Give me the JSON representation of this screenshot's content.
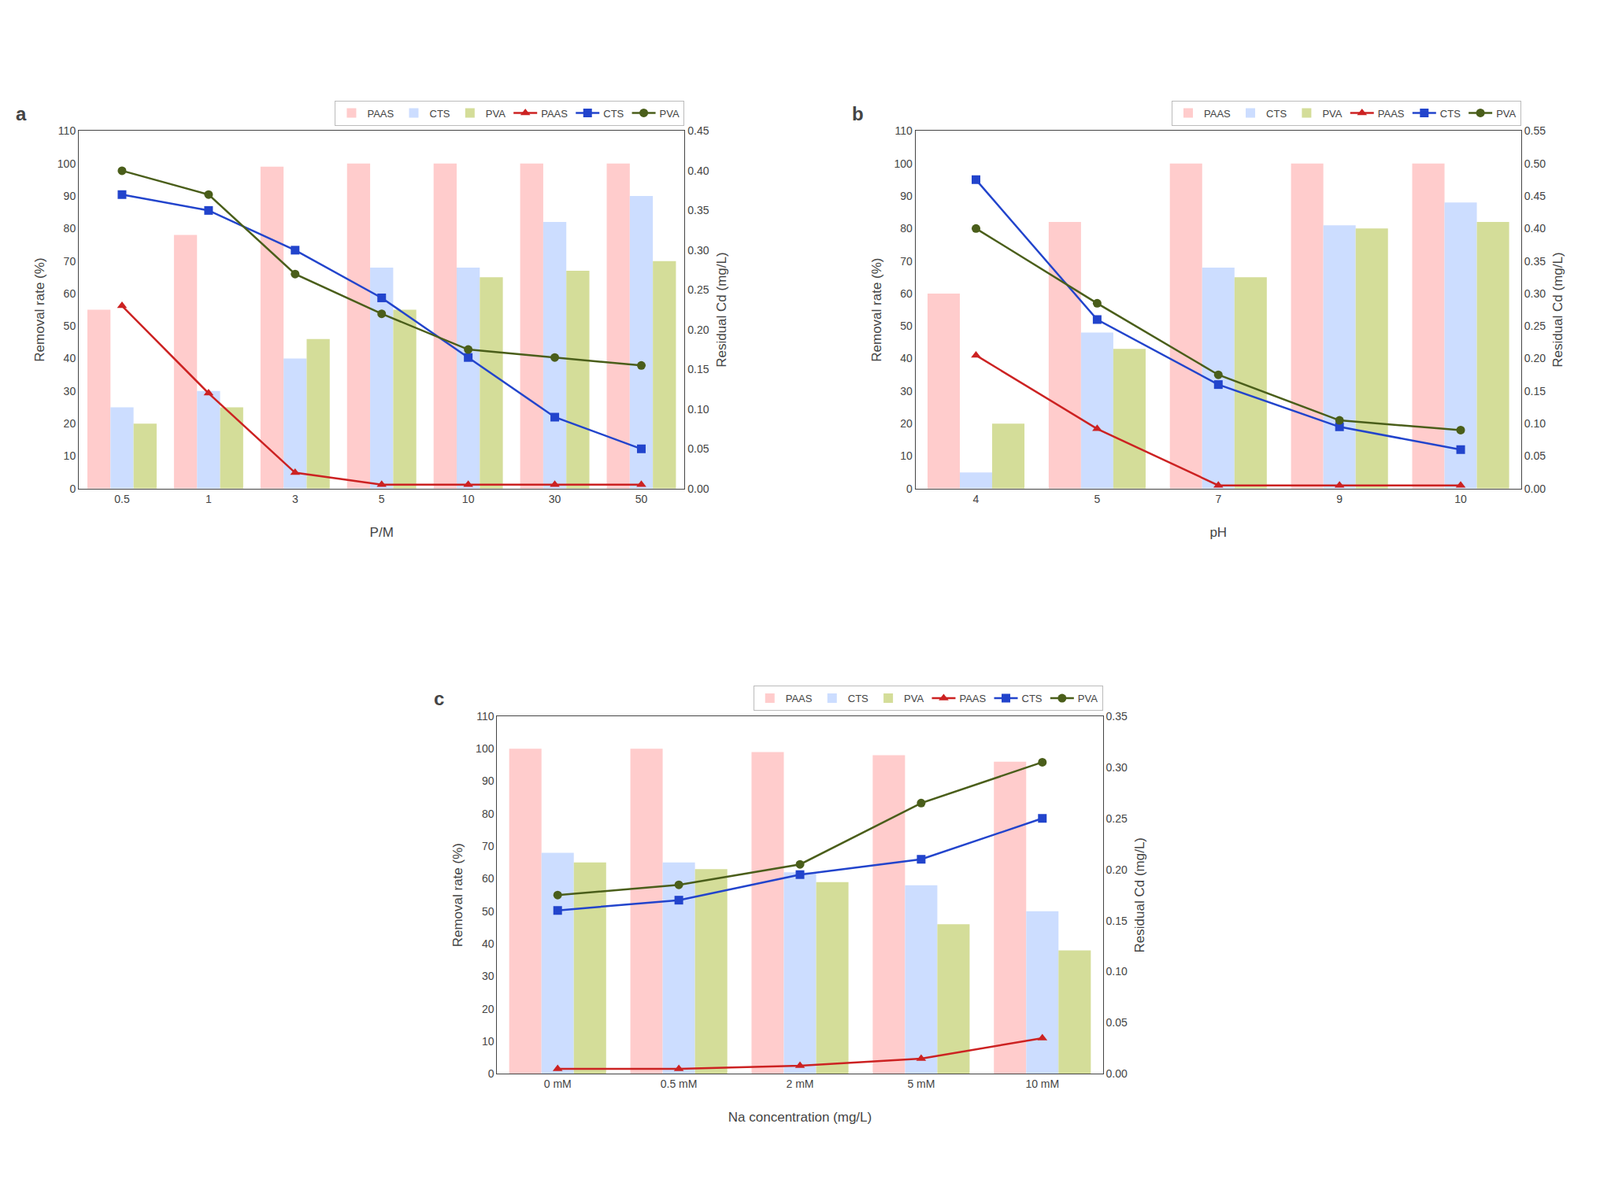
{
  "chart_data": [
    {
      "type": "bar",
      "title": "a",
      "xlabel": "P/M",
      "ylabel": "Removal rate (%)",
      "y2label": "Residual Cd (mg/L)",
      "categories": [
        "0.5",
        "1",
        "3",
        "5",
        "10",
        "30",
        "50"
      ],
      "ylim": [
        0,
        110
      ],
      "yticks": [
        0,
        10,
        20,
        30,
        40,
        50,
        60,
        70,
        80,
        90,
        100,
        110
      ],
      "y2lim": [
        0,
        0.45
      ],
      "y2ticks": [
        {
          "value": 0.0,
          "label": "0.00"
        },
        0.05,
        {
          "value": 0.1,
          "label": "0.10"
        },
        0.15,
        {
          "value": 0.2,
          "label": "0.20"
        },
        0.25,
        {
          "value": 0.3,
          "label": "0.30"
        },
        0.35,
        {
          "value": 0.4,
          "label": "0.40"
        },
        0.45
      ],
      "grid": false,
      "legend": "upper right",
      "series": [
        {
          "name": "PAAS",
          "type": "bar",
          "color": "#FFCCCC",
          "values": [
            55,
            78,
            99,
            100,
            100,
            100,
            100
          ]
        },
        {
          "name": "CTS",
          "type": "bar",
          "color": "#CCDDFF",
          "values": [
            25,
            30,
            40,
            68,
            68,
            82,
            90
          ]
        },
        {
          "name": "PVA",
          "type": "bar",
          "color": "#D4DD99",
          "values": [
            20,
            25,
            46,
            55,
            65,
            67,
            70
          ]
        },
        {
          "name": "PAAS",
          "type": "line",
          "axis": "y2",
          "color": "#CC2222",
          "marker": "triangle-up",
          "line_style": "solid",
          "values": [
            0.23,
            0.12,
            0.02,
            0.005,
            0.005,
            0.005,
            0.005
          ]
        },
        {
          "name": "CTS",
          "type": "line",
          "axis": "y2",
          "color": "#2244CC",
          "marker": "square",
          "line_style": "solid",
          "values": [
            0.37,
            0.35,
            0.3,
            0.24,
            0.165,
            0.09,
            0.05
          ]
        },
        {
          "name": "PVA",
          "type": "line",
          "axis": "y2",
          "color": "#4A5E1A",
          "marker": "circle",
          "line_style": "solid",
          "values": [
            0.4,
            0.37,
            0.27,
            0.22,
            0.175,
            0.165,
            0.155
          ]
        }
      ]
    },
    {
      "type": "bar",
      "title": "b",
      "xlabel": "pH",
      "ylabel": "Removal rate (%)",
      "y2label": "Residual Cd (mg/L)",
      "categories": [
        "4",
        "5",
        "7",
        "9",
        "10"
      ],
      "ylim": [
        0,
        110
      ],
      "yticks": [
        0,
        10,
        20,
        30,
        40,
        50,
        60,
        70,
        80,
        90,
        100,
        110
      ],
      "y2lim": [
        0,
        0.55
      ],
      "y2ticks": [
        {
          "value": 0.0,
          "label": "0.00"
        },
        0.05,
        {
          "value": 0.1,
          "label": "0.10"
        },
        0.15,
        {
          "value": 0.2,
          "label": "0.20"
        },
        0.25,
        {
          "value": 0.3,
          "label": "0.30"
        },
        0.35,
        {
          "value": 0.4,
          "label": "0.40"
        },
        0.45,
        {
          "value": 0.5,
          "label": "0.50"
        },
        0.55
      ],
      "grid": false,
      "legend": "upper right",
      "series": [
        {
          "name": "PAAS",
          "type": "bar",
          "color": "#FFCCCC",
          "values": [
            60,
            82,
            100,
            100,
            100
          ]
        },
        {
          "name": "CTS",
          "type": "bar",
          "color": "#CCDDFF",
          "values": [
            5,
            48,
            68,
            81,
            88
          ]
        },
        {
          "name": "PVA",
          "type": "bar",
          "color": "#D4DD99",
          "values": [
            20,
            43,
            65,
            80,
            82
          ]
        },
        {
          "name": "PAAS",
          "type": "line",
          "axis": "y2",
          "color": "#CC2222",
          "marker": "triangle-up",
          "line_style": "solid",
          "values": [
            0.205,
            0.092,
            0.005,
            0.005,
            0.005
          ]
        },
        {
          "name": "CTS",
          "type": "line",
          "axis": "y2",
          "color": "#2244CC",
          "marker": "square",
          "line_style": "solid",
          "values": [
            0.475,
            0.26,
            0.16,
            0.095,
            0.06
          ]
        },
        {
          "name": "PVA",
          "type": "line",
          "axis": "y2",
          "color": "#4A5E1A",
          "marker": "circle",
          "line_style": "solid",
          "values": [
            0.4,
            0.285,
            0.175,
            0.105,
            0.09
          ]
        }
      ]
    },
    {
      "type": "bar",
      "title": "c",
      "xlabel": "Na concentration (mg/L)",
      "ylabel": "Removal rate (%)",
      "y2label": "Residual Cd (mg/L)",
      "categories": [
        "0 mM",
        "0.5 mM",
        "2 mM",
        "5 mM",
        "10 mM"
      ],
      "ylim": [
        0,
        110
      ],
      "yticks": [
        0,
        10,
        20,
        30,
        40,
        50,
        60,
        70,
        80,
        90,
        100,
        110
      ],
      "y2lim": [
        0,
        0.35
      ],
      "y2ticks": [
        {
          "value": 0.0,
          "label": "0.00"
        },
        0.05,
        {
          "value": 0.1,
          "label": "0.10"
        },
        0.15,
        {
          "value": 0.2,
          "label": "0.20"
        },
        0.25,
        {
          "value": 0.3,
          "label": "0.30"
        },
        0.35
      ],
      "grid": false,
      "legend": "upper right",
      "series": [
        {
          "name": "PAAS",
          "type": "bar",
          "color": "#FFCCCC",
          "values": [
            100,
            100,
            99,
            98,
            96
          ]
        },
        {
          "name": "CTS",
          "type": "bar",
          "color": "#CCDDFF",
          "values": [
            68,
            65,
            62,
            58,
            50
          ]
        },
        {
          "name": "PVA",
          "type": "bar",
          "color": "#D4DD99",
          "values": [
            65,
            63,
            59,
            46,
            38
          ]
        },
        {
          "name": "PAAS",
          "type": "line",
          "axis": "y2",
          "color": "#CC2222",
          "marker": "triangle-up",
          "line_style": "solid",
          "values": [
            0.005,
            0.005,
            0.008,
            0.015,
            0.035
          ]
        },
        {
          "name": "CTS",
          "type": "line",
          "axis": "y2",
          "color": "#2244CC",
          "marker": "square",
          "line_style": "solid",
          "values": [
            0.16,
            0.17,
            0.195,
            0.21,
            0.25
          ]
        },
        {
          "name": "PVA",
          "type": "line",
          "axis": "y2",
          "color": "#4A5E1A",
          "marker": "circle",
          "line_style": "solid",
          "values": [
            0.175,
            0.185,
            0.205,
            0.265,
            0.305
          ]
        }
      ]
    }
  ]
}
